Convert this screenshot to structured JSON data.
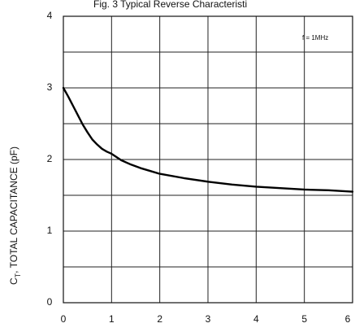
{
  "chart_data": {
    "type": "line",
    "title": "Fig. 3  Typical Reverse Characteristi",
    "xlabel": "",
    "ylabel": "C_T, TOTAL CAPACITANCE (pF)",
    "ylabel_main": "C",
    "ylabel_sub": "T",
    "ylabel_rest": ", TOTAL CAPACITANCE (pF)",
    "xlim": [
      0,
      6
    ],
    "ylim": [
      0,
      4
    ],
    "x_ticks": [
      "0",
      "1",
      "2",
      "3",
      "4",
      "5",
      "6"
    ],
    "y_ticks": [
      "0",
      "1",
      "2",
      "3",
      "4"
    ],
    "grid": true,
    "annotation": "f = 1MHz",
    "series": [
      {
        "x": [
          0,
          0.1,
          0.2,
          0.3,
          0.4,
          0.5,
          0.6,
          0.7,
          0.8,
          0.9,
          1.0,
          1.2,
          1.4,
          1.6,
          1.8,
          2.0,
          2.5,
          3.0,
          3.5,
          4.0,
          4.5,
          5.0,
          5.5,
          6.0
        ],
        "y": [
          3.0,
          2.88,
          2.75,
          2.62,
          2.49,
          2.38,
          2.28,
          2.21,
          2.15,
          2.11,
          2.08,
          1.99,
          1.93,
          1.88,
          1.84,
          1.8,
          1.74,
          1.69,
          1.65,
          1.62,
          1.6,
          1.58,
          1.57,
          1.55
        ]
      }
    ]
  }
}
